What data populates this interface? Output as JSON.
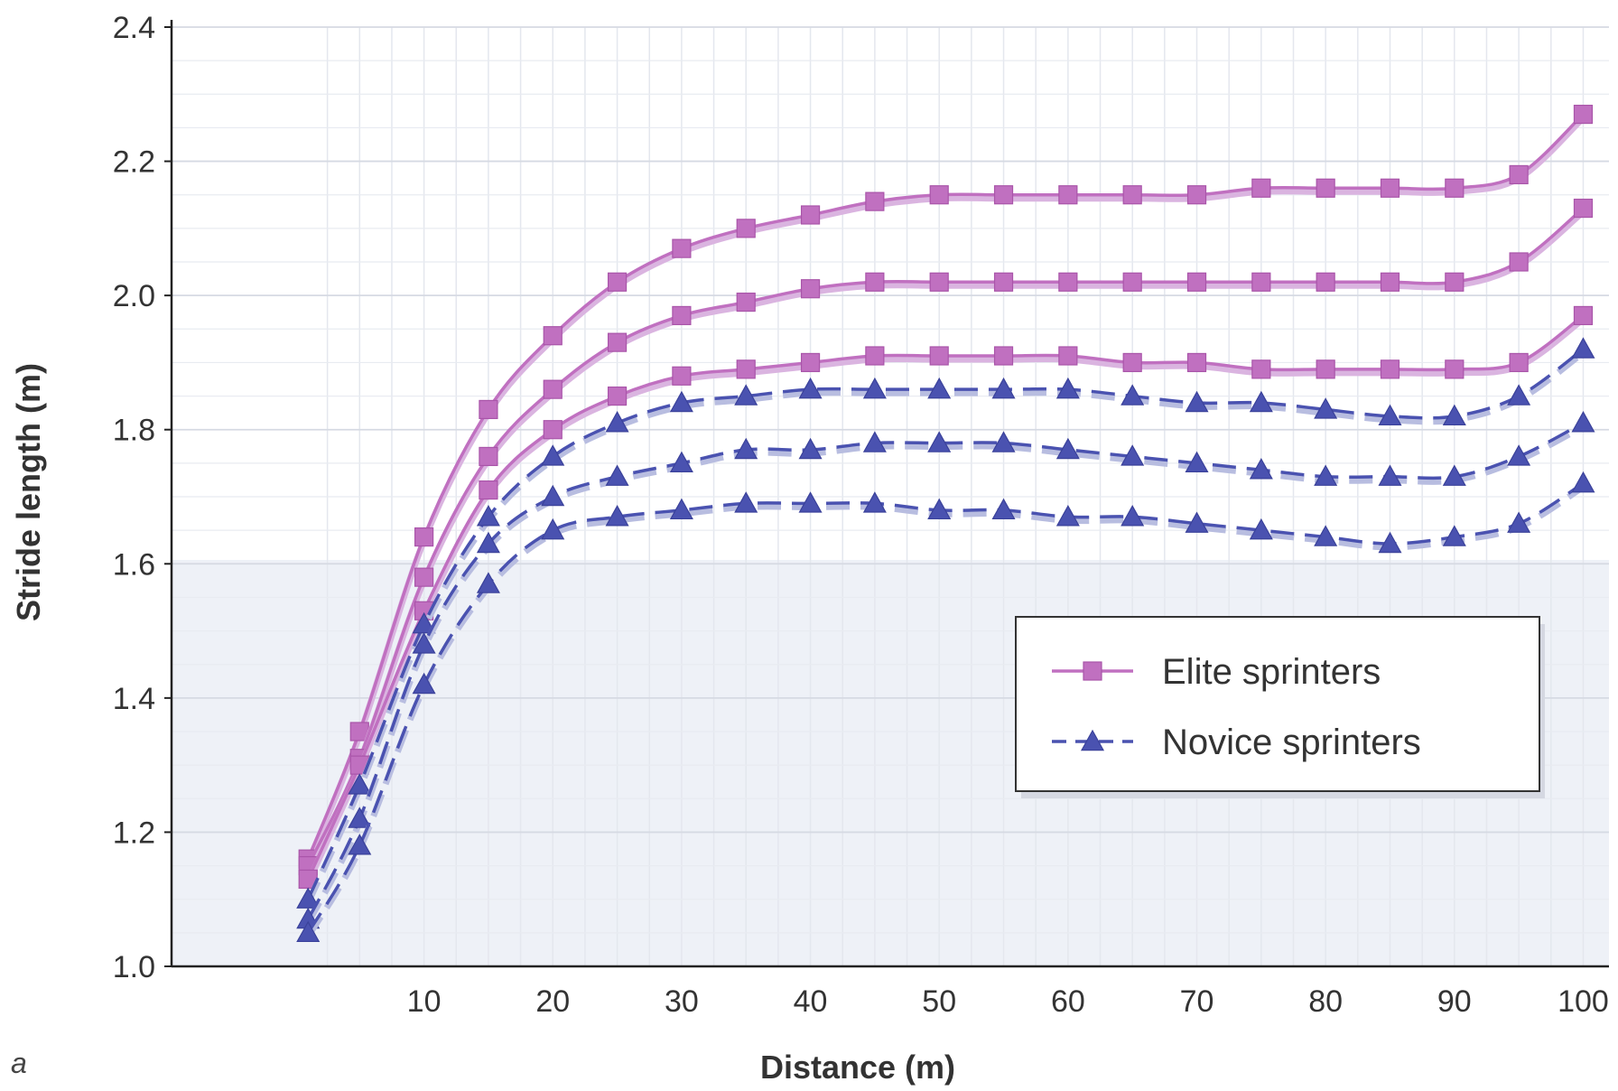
{
  "panel_label": "a",
  "chart_data": {
    "type": "line",
    "xlabel": "Distance (m)",
    "ylabel": "Stride length (m)",
    "xlim": [
      0,
      102
    ],
    "ylim": [
      1.0,
      2.4
    ],
    "x_ticks": [
      10,
      20,
      30,
      40,
      50,
      60,
      70,
      80,
      90,
      100
    ],
    "y_ticks": [
      1.0,
      1.2,
      1.4,
      1.6,
      1.8,
      2.0,
      2.2,
      2.4
    ],
    "x_tick_labels": [
      "10",
      "20",
      "30",
      "40",
      "50",
      "60",
      "70",
      "80",
      "90",
      "100"
    ],
    "y_tick_labels": [
      "1.0",
      "1.2",
      "1.4",
      "1.6",
      "1.8",
      "2.0",
      "2.2",
      "2.4"
    ],
    "grid": true,
    "legend_position": "center-right",
    "colors": {
      "elite": "#c070c0",
      "novice": "#4a52b0"
    },
    "x": [
      1,
      5,
      10,
      15,
      20,
      25,
      30,
      35,
      40,
      45,
      50,
      55,
      60,
      65,
      70,
      75,
      80,
      85,
      90,
      95,
      100
    ],
    "series": [
      {
        "name": "Elite sprinters",
        "group": "elite",
        "marker": "square",
        "dash": false,
        "values": [
          1.16,
          1.35,
          1.64,
          1.83,
          1.94,
          2.02,
          2.07,
          2.1,
          2.12,
          2.14,
          2.15,
          2.15,
          2.15,
          2.15,
          2.15,
          2.16,
          2.16,
          2.16,
          2.16,
          2.18,
          2.27
        ]
      },
      {
        "name": "",
        "group": "elite",
        "marker": "square",
        "dash": false,
        "values": [
          1.15,
          1.31,
          1.58,
          1.76,
          1.86,
          1.93,
          1.97,
          1.99,
          2.01,
          2.02,
          2.02,
          2.02,
          2.02,
          2.02,
          2.02,
          2.02,
          2.02,
          2.02,
          2.02,
          2.05,
          2.13
        ]
      },
      {
        "name": "",
        "group": "elite",
        "marker": "square",
        "dash": false,
        "values": [
          1.13,
          1.3,
          1.53,
          1.71,
          1.8,
          1.85,
          1.88,
          1.89,
          1.9,
          1.91,
          1.91,
          1.91,
          1.91,
          1.9,
          1.9,
          1.89,
          1.89,
          1.89,
          1.89,
          1.9,
          1.97
        ]
      },
      {
        "name": "Novice sprinters",
        "group": "novice",
        "marker": "triangle",
        "dash": true,
        "values": [
          1.1,
          1.27,
          1.51,
          1.67,
          1.76,
          1.81,
          1.84,
          1.85,
          1.86,
          1.86,
          1.86,
          1.86,
          1.86,
          1.85,
          1.84,
          1.84,
          1.83,
          1.82,
          1.82,
          1.85,
          1.92
        ]
      },
      {
        "name": "",
        "group": "novice",
        "marker": "triangle",
        "dash": true,
        "values": [
          1.07,
          1.22,
          1.48,
          1.63,
          1.7,
          1.73,
          1.75,
          1.77,
          1.77,
          1.78,
          1.78,
          1.78,
          1.77,
          1.76,
          1.75,
          1.74,
          1.73,
          1.73,
          1.73,
          1.76,
          1.81
        ]
      },
      {
        "name": "",
        "group": "novice",
        "marker": "triangle",
        "dash": true,
        "values": [
          1.05,
          1.18,
          1.42,
          1.57,
          1.65,
          1.67,
          1.68,
          1.69,
          1.69,
          1.69,
          1.68,
          1.68,
          1.67,
          1.67,
          1.66,
          1.65,
          1.64,
          1.63,
          1.64,
          1.66,
          1.72
        ]
      }
    ],
    "legend": [
      {
        "label": "Elite sprinters",
        "group": "elite",
        "marker": "square",
        "dash": false
      },
      {
        "label": "Novice sprinters",
        "group": "novice",
        "marker": "triangle",
        "dash": true
      }
    ]
  }
}
